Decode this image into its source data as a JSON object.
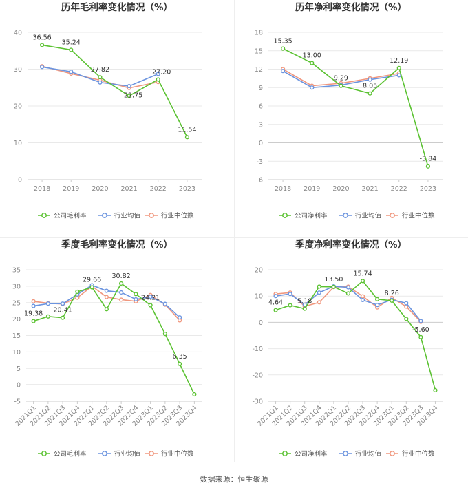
{
  "colors": {
    "company": "#5bc232",
    "industry_avg": "#6b94df",
    "industry_median": "#f0977e"
  },
  "legend": {
    "gross_company": "公司毛利率",
    "net_company": "公司净利率",
    "industry_avg": "行业均值",
    "industry_median": "行业中位数"
  },
  "source_text": "数据来源：恒生聚源",
  "chart_data": [
    {
      "type": "line",
      "title": "历年毛利率变化情况（%）",
      "categories": [
        "2018",
        "2019",
        "2020",
        "2021",
        "2022",
        "2023"
      ],
      "ylim": [
        0,
        40
      ],
      "yticks": [
        0,
        10,
        20,
        30,
        40
      ],
      "legend_position": "bottom",
      "grid": true,
      "series": [
        {
          "name": "公司毛利率",
          "color": "#5bc232",
          "values": [
            36.56,
            35.24,
            27.82,
            22.75,
            27.2,
            11.54
          ],
          "labels": [
            "36.56",
            "35.24",
            "27.82",
            "22.75",
            "27.20",
            "11.54"
          ]
        },
        {
          "name": "行业均值",
          "color": "#6b94df",
          "values": [
            30.6,
            29.3,
            26.4,
            25.4,
            28.7,
            null
          ]
        },
        {
          "name": "行业中位数",
          "color": "#f0977e",
          "values": [
            30.8,
            28.8,
            27.0,
            24.9,
            26.5,
            null
          ]
        }
      ]
    },
    {
      "type": "line",
      "title": "历年净利率变化情况（%）",
      "categories": [
        "2018",
        "2019",
        "2020",
        "2021",
        "2022",
        "2023"
      ],
      "ylim": [
        -6,
        18
      ],
      "yticks": [
        -6,
        -3,
        0,
        3,
        6,
        9,
        12,
        15,
        18
      ],
      "legend_position": "bottom",
      "grid": true,
      "series": [
        {
          "name": "公司净利率",
          "color": "#5bc232",
          "values": [
            15.35,
            13.0,
            9.29,
            8.05,
            12.19,
            -3.84
          ],
          "labels": [
            "15.35",
            "13.00",
            "9.29",
            "8.05",
            "12.19",
            "-3.84"
          ]
        },
        {
          "name": "行业均值",
          "color": "#6b94df",
          "values": [
            11.7,
            9.0,
            9.4,
            10.3,
            11.0,
            null
          ]
        },
        {
          "name": "行业中位数",
          "color": "#f0977e",
          "values": [
            12.0,
            9.3,
            9.7,
            10.5,
            11.3,
            null
          ]
        }
      ]
    },
    {
      "type": "line",
      "title": "季度毛利率变化情况（%）",
      "categories": [
        "2021Q1",
        "2021Q2",
        "2021Q3",
        "2021Q4",
        "2022Q1",
        "2022Q2",
        "2022Q3",
        "2022Q4",
        "2023Q1",
        "2023Q2",
        "2023Q3",
        "2023Q4"
      ],
      "ylim": [
        -5,
        35
      ],
      "yticks": [
        -5,
        0,
        5,
        10,
        15,
        20,
        25,
        30,
        35
      ],
      "legend_position": "bottom",
      "grid": true,
      "series": [
        {
          "name": "公司毛利率",
          "color": "#5bc232",
          "values": [
            19.38,
            20.8,
            20.41,
            28.3,
            29.66,
            23.0,
            30.82,
            27.6,
            24.21,
            15.5,
            6.35,
            -2.9
          ],
          "labels": [
            "19.38",
            "",
            "20.41",
            "",
            "29.66",
            "",
            "30.82",
            "",
            "24.21",
            "",
            "6.35",
            ""
          ]
        },
        {
          "name": "行业均值",
          "color": "#6b94df",
          "values": [
            24.0,
            24.7,
            24.7,
            27.5,
            30.3,
            28.6,
            28.1,
            26.0,
            26.8,
            24.6,
            20.5,
            null
          ]
        },
        {
          "name": "行业中位数",
          "color": "#f0977e",
          "values": [
            25.4,
            24.8,
            24.6,
            26.5,
            30.0,
            26.7,
            25.9,
            25.4,
            27.3,
            24.4,
            19.6,
            null
          ]
        }
      ]
    },
    {
      "type": "line",
      "title": "季度净利率变化情况（%）",
      "categories": [
        "2021Q1",
        "2021Q2",
        "2021Q3",
        "2021Q4",
        "2022Q1",
        "2022Q2",
        "2022Q3",
        "2022Q4",
        "2023Q1",
        "2023Q2",
        "2023Q3",
        "2023Q4"
      ],
      "ylim": [
        -30,
        20
      ],
      "yticks": [
        -30,
        -20,
        -10,
        0,
        10,
        20
      ],
      "legend_position": "bottom",
      "grid": true,
      "series": [
        {
          "name": "公司净利率",
          "color": "#5bc232",
          "values": [
            4.64,
            6.5,
            5.18,
            13.6,
            13.5,
            11.0,
            15.74,
            8.8,
            8.26,
            1.3,
            -5.6,
            -25.8
          ],
          "labels": [
            "4.64",
            "",
            "5.18",
            "",
            "13.50",
            "",
            "15.74",
            "",
            "8.26",
            "",
            "-5.60",
            ""
          ]
        },
        {
          "name": "行业均值",
          "color": "#6b94df",
          "values": [
            10.0,
            10.8,
            6.7,
            11.3,
            13.7,
            13.3,
            8.5,
            6.6,
            8.6,
            7.3,
            0.5,
            null
          ]
        },
        {
          "name": "行业中位数",
          "color": "#f0977e",
          "values": [
            10.8,
            11.3,
            6.1,
            7.6,
            13.4,
            13.6,
            9.9,
            5.7,
            9.3,
            6.0,
            0.2,
            null
          ]
        }
      ]
    }
  ]
}
